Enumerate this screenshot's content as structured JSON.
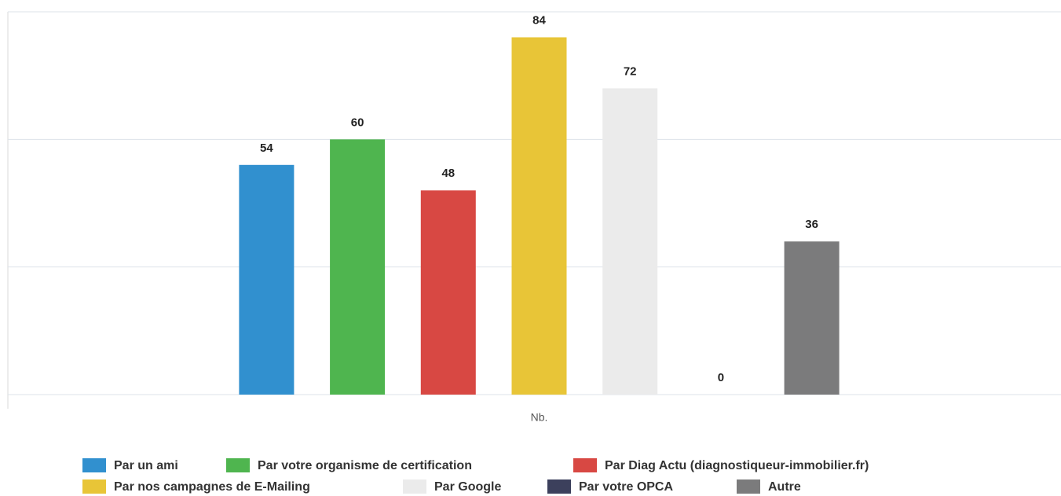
{
  "chart_data": {
    "type": "bar",
    "categories": [
      "Nb."
    ],
    "series": [
      {
        "name": "Par un ami",
        "color": "#3190cf",
        "values": [
          54
        ]
      },
      {
        "name": "Par votre organisme de certification",
        "color": "#4fb54f",
        "values": [
          60
        ]
      },
      {
        "name": "Par Diag Actu (diagnostiqueur-immobilier.fr)",
        "color": "#d84843",
        "values": [
          48
        ]
      },
      {
        "name": "Par nos campagnes de E-Mailing",
        "color": "#e8c537",
        "values": [
          84
        ]
      },
      {
        "name": "Par Google",
        "color": "#ebebeb",
        "values": [
          72
        ]
      },
      {
        "name": "Par votre OPCA",
        "color": "#3c405c",
        "values": [
          0
        ]
      },
      {
        "name": "Autre",
        "color": "#7b7b7c",
        "values": [
          36
        ]
      }
    ],
    "ylim": [
      0,
      90
    ],
    "yticks": [
      0,
      30,
      60,
      90
    ],
    "grid": true,
    "legend": "bottom"
  }
}
